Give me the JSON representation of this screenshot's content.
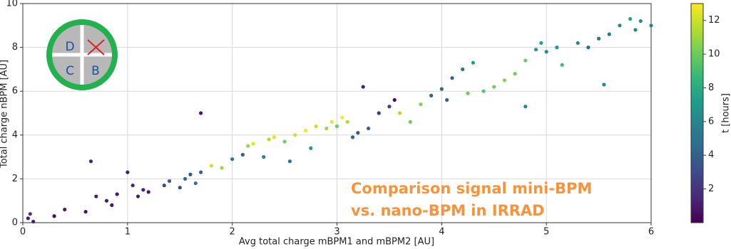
{
  "chart_data": {
    "type": "scatter",
    "xlabel": "Avg total charge mBPM1 and mBPM2 [AU]",
    "ylabel": "Total charge nBPM [AU]",
    "annotation": [
      "Comparison signal mini-BPM",
      "vs. nano-BPM in IRRAD"
    ],
    "annotation_color": "#f7933b",
    "icon_labels": [
      "D",
      "C",
      "B"
    ],
    "colorbar_label": "t [hours]",
    "colormap": "viridis",
    "clim": [
      0,
      13
    ],
    "cticks": [
      2,
      4,
      6,
      8,
      10,
      12
    ],
    "xlim": [
      0,
      6
    ],
    "xticks": [
      0,
      1,
      2,
      3,
      4,
      5,
      6
    ],
    "ylim": [
      0,
      10
    ],
    "yticks": [
      0,
      2,
      4,
      6,
      8,
      10
    ],
    "grid": true,
    "x": [
      0.05,
      0.07,
      0.1,
      0.3,
      0.4,
      0.6,
      0.7,
      0.65,
      0.8,
      0.85,
      0.9,
      1.0,
      1.05,
      1.1,
      1.15,
      1.2,
      1.35,
      1.4,
      1.5,
      1.55,
      1.6,
      1.65,
      1.7,
      1.7,
      1.8,
      1.9,
      2.0,
      2.1,
      2.15,
      2.2,
      2.3,
      2.35,
      2.4,
      2.5,
      2.55,
      2.6,
      2.7,
      2.75,
      2.8,
      2.9,
      2.95,
      3.0,
      3.05,
      3.1,
      3.15,
      3.2,
      3.25,
      3.3,
      3.4,
      3.5,
      3.55,
      3.6,
      3.7,
      3.8,
      3.9,
      4.0,
      4.05,
      4.1,
      4.2,
      4.25,
      4.3,
      4.4,
      4.5,
      4.6,
      4.7,
      4.8,
      4.8,
      4.9,
      4.95,
      5.0,
      5.1,
      5.15,
      5.3,
      5.4,
      5.5,
      5.55,
      5.6,
      5.7,
      5.8,
      5.85,
      5.9,
      6.0
    ],
    "y": [
      0.2,
      0.4,
      0.05,
      0.3,
      0.6,
      0.5,
      1.2,
      2.8,
      1.0,
      0.8,
      1.3,
      2.3,
      1.7,
      1.2,
      1.5,
      1.4,
      1.7,
      1.9,
      1.6,
      2.0,
      2.2,
      1.8,
      2.3,
      5.0,
      2.6,
      2.5,
      2.9,
      3.1,
      3.5,
      3.6,
      3.0,
      3.8,
      3.9,
      3.7,
      2.8,
      4.0,
      4.2,
      3.4,
      4.4,
      4.3,
      4.6,
      4.4,
      4.8,
      4.6,
      3.9,
      4.1,
      6.2,
      4.3,
      5.0,
      5.3,
      5.6,
      5.0,
      4.6,
      5.4,
      5.8,
      6.1,
      5.6,
      6.6,
      7.0,
      5.9,
      7.3,
      6.0,
      6.2,
      6.5,
      6.8,
      7.4,
      5.3,
      7.9,
      8.2,
      7.8,
      8.0,
      7.2,
      8.2,
      8.0,
      8.4,
      6.3,
      8.6,
      9.0,
      9.3,
      8.8,
      9.2,
      9.0
    ],
    "c": [
      1,
      2,
      1,
      0.5,
      1,
      0.8,
      1,
      1.5,
      1,
      0.8,
      0.8,
      1,
      1.5,
      1,
      1.2,
      0.9,
      3,
      4,
      3,
      4.5,
      3.5,
      5,
      4,
      0.8,
      12,
      11,
      5,
      4,
      11,
      12.5,
      6,
      11.5,
      12.5,
      10,
      5,
      12,
      12.8,
      7,
      12,
      11,
      12.5,
      10,
      13,
      11.5,
      4,
      3.5,
      1,
      4,
      2,
      2.5,
      0.5,
      11.5,
      10,
      10.5,
      4,
      4.5,
      4,
      4,
      5,
      10,
      7,
      9.5,
      10,
      10.5,
      10,
      10,
      6,
      7,
      7.5,
      6.5,
      7,
      9,
      6,
      4.5,
      5,
      6,
      5.5,
      6,
      7.5,
      6,
      6.5,
      6
    ]
  }
}
